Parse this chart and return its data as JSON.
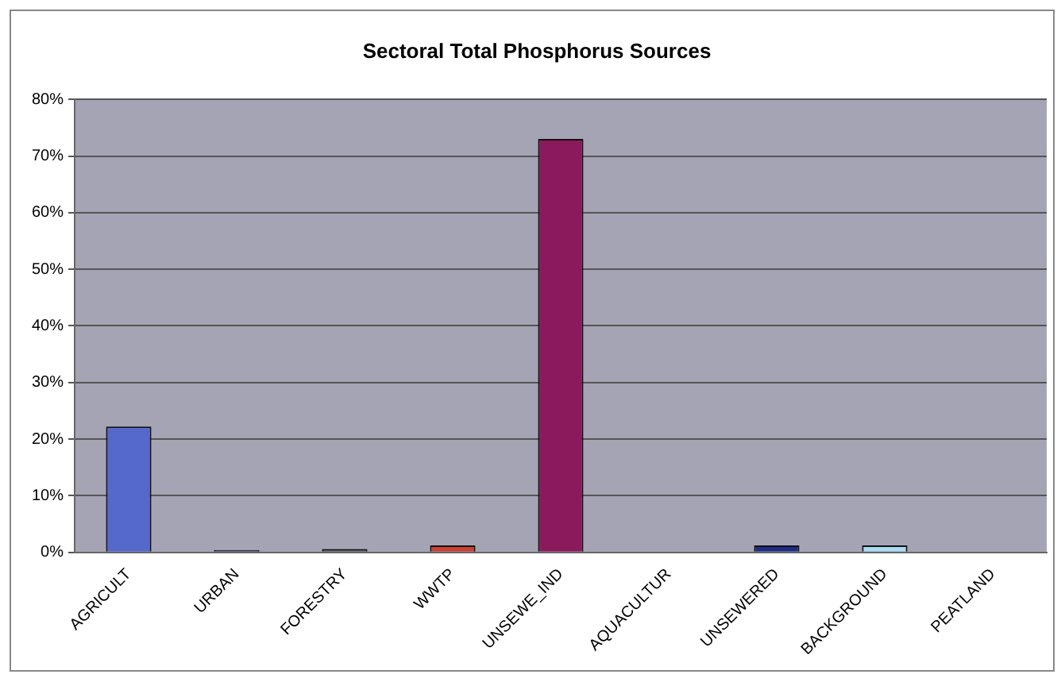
{
  "chart_data": {
    "type": "bar",
    "title": "Sectoral Total Phosphorus Sources",
    "categories": [
      "AGRICULT",
      "URBAN",
      "FORESTRY",
      "WWTP",
      "UNSEWE_IND",
      "AQUACULTUR",
      "UNSEWERED",
      "BACKGROUND",
      "PEATLAND"
    ],
    "values": [
      22.2,
      0.4,
      0.6,
      1.2,
      73,
      0,
      1.2,
      1.2,
      0
    ],
    "colors": [
      "#5568cc",
      "#3a3a78",
      "#555555",
      "#d04030",
      "#8a1a5c",
      "#777777",
      "#1e2c86",
      "#a8dcf2",
      "#777777"
    ],
    "ylim": [
      0,
      80
    ],
    "yticks": [
      {
        "value": 0,
        "label": "0%"
      },
      {
        "value": 10,
        "label": "10%"
      },
      {
        "value": 20,
        "label": "20%"
      },
      {
        "value": 30,
        "label": "30%"
      },
      {
        "value": 40,
        "label": "40%"
      },
      {
        "value": 50,
        "label": "50%"
      },
      {
        "value": 60,
        "label": "60%"
      },
      {
        "value": 70,
        "label": "70%"
      },
      {
        "value": 80,
        "label": "80%"
      }
    ],
    "grid": "y",
    "legend": false
  }
}
